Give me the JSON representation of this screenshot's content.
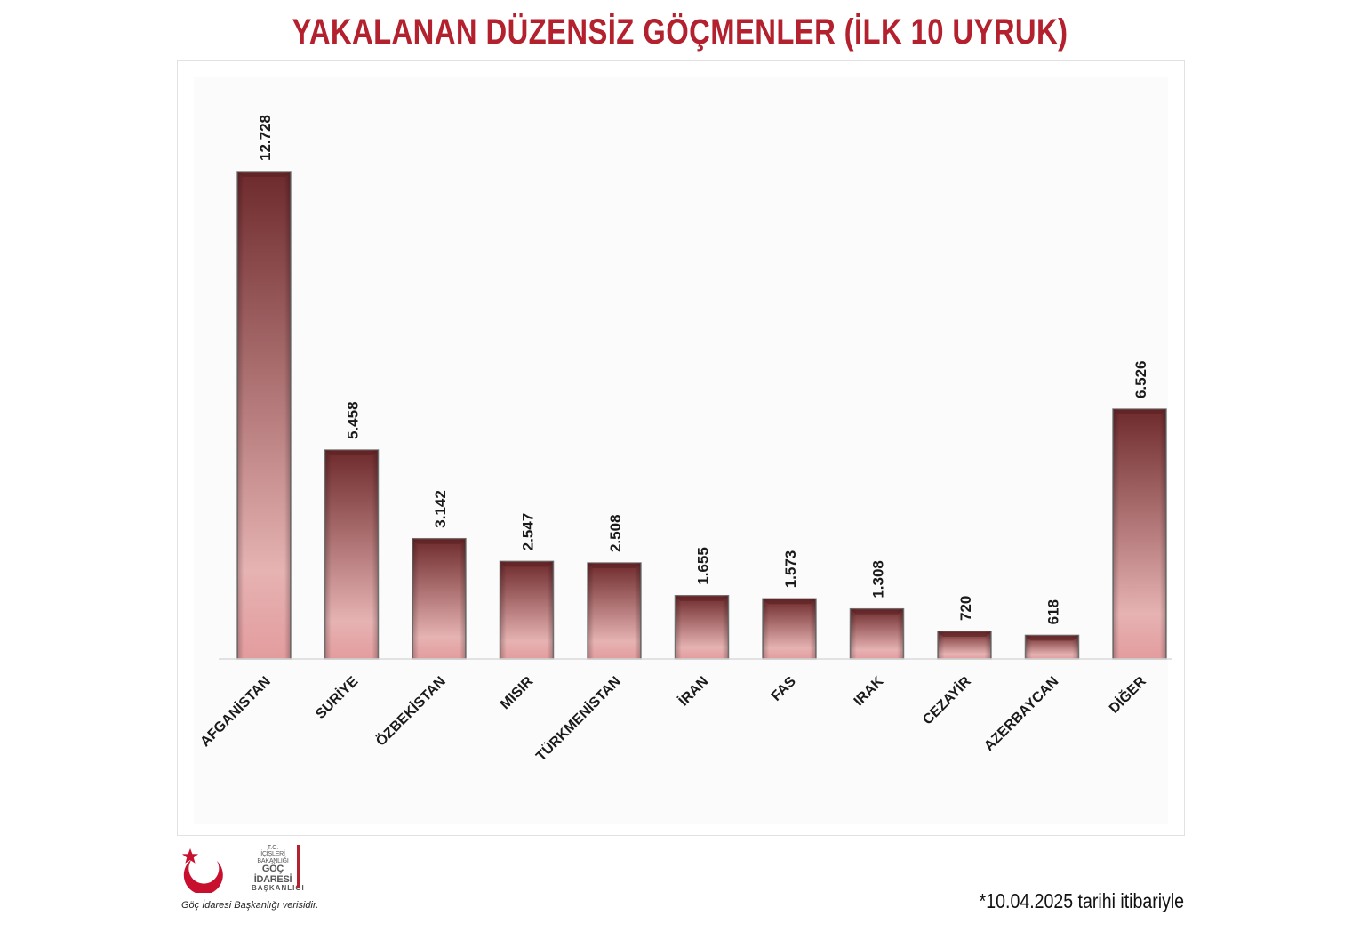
{
  "title": "YAKALANAN DÜZENSİZ GÖÇMENLER (İLK 10 UYRUK)",
  "chart_data": {
    "type": "bar",
    "categories": [
      "AFGANİSTAN",
      "SURİYE",
      "ÖZBEKİSTAN",
      "MISIR",
      "TÜRKMENİSTAN",
      "İRAN",
      "FAS",
      "IRAK",
      "CEZAYİR",
      "AZERBAYCAN",
      "DİĞER"
    ],
    "values": [
      12728,
      5458,
      3142,
      2547,
      2508,
      1655,
      1573,
      1308,
      720,
      618,
      6526
    ],
    "value_labels": [
      "12.728",
      "5.458",
      "3.142",
      "2.547",
      "2.508",
      "1.655",
      "1.573",
      "1.308",
      "720",
      "618",
      "6.526"
    ],
    "xlabel": "",
    "ylabel": "",
    "ylim": [
      0,
      15000
    ],
    "grid": false,
    "legend": "none",
    "bar_gradient": {
      "top": "#6e2a2c",
      "mid": "#e6b2b2",
      "bottom": "#e39c9e"
    }
  },
  "logo": {
    "line1": "T.C.",
    "line2": "İÇİŞLERİ BAKANLIĞI",
    "line3": "GÖÇ İDARESİ",
    "line4": "BAŞKANLIĞI",
    "icon": "crescent-star-icon",
    "accent": "#c8102e"
  },
  "source_note": "Göç İdaresi Başkanlığı verisidir.",
  "date_note": "*10.04.2025 tarihi itibariyle"
}
